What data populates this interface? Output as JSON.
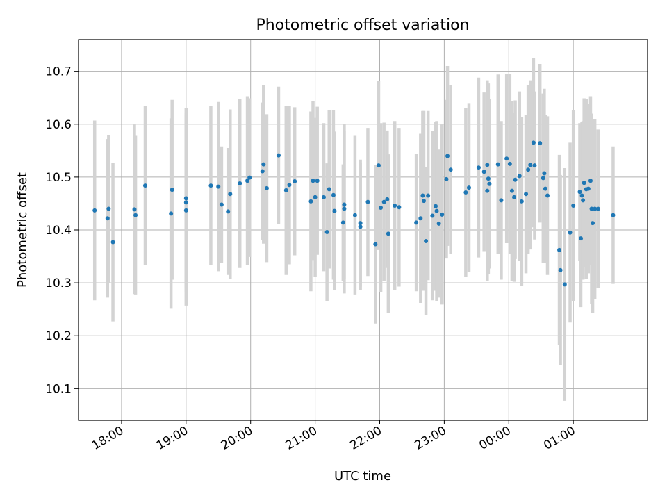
{
  "chart_data": {
    "type": "scatter",
    "title": "Photometric offset variation",
    "xlabel": "UTC time",
    "ylabel": "Photometric offset",
    "x_unit": "UTC time",
    "x_range": [
      "17:20",
      "02:09"
    ],
    "ylim": [
      10.04,
      10.76
    ],
    "x_ticks": [
      {
        "time": "18:00",
        "label": "18:00"
      },
      {
        "time": "19:00",
        "label": "19:00"
      },
      {
        "time": "20:00",
        "label": "20:00"
      },
      {
        "time": "21:00",
        "label": "21:00"
      },
      {
        "time": "22:00",
        "label": "22:00"
      },
      {
        "time": "23:00",
        "label": "23:00"
      },
      {
        "time": "00:00",
        "label": "00:00"
      },
      {
        "time": "01:00",
        "label": "01:00"
      }
    ],
    "y_ticks": [
      10.1,
      10.2,
      10.3,
      10.4,
      10.5,
      10.6,
      10.7
    ],
    "grid": true,
    "colors": {
      "marker": "#1f77b4",
      "errorbar": "#d3d3d3",
      "grid": "#b0b0b0"
    },
    "series": [
      {
        "points": [
          {
            "t": "17:35",
            "y": 10.437,
            "err": 0.17
          },
          {
            "t": "17:47",
            "y": 10.422,
            "err": 0.15
          },
          {
            "t": "17:48",
            "y": 10.44,
            "err": 0.14
          },
          {
            "t": "17:52",
            "y": 10.377,
            "err": 0.15
          },
          {
            "t": "18:12",
            "y": 10.439,
            "err": 0.16
          },
          {
            "t": "18:13",
            "y": 10.428,
            "err": 0.15
          },
          {
            "t": "18:22",
            "y": 10.484,
            "err": 0.15
          },
          {
            "t": "18:46",
            "y": 10.431,
            "err": 0.18
          },
          {
            "t": "18:47",
            "y": 10.476,
            "err": 0.17
          },
          {
            "t": "19:00",
            "y": 10.437,
            "err": 0.18
          },
          {
            "t": "19:00",
            "y": 10.452,
            "err": 0.17
          },
          {
            "t": "19:00",
            "y": 10.46,
            "err": 0.17
          },
          {
            "t": "19:23",
            "y": 10.484,
            "err": 0.15
          },
          {
            "t": "19:30",
            "y": 10.482,
            "err": 0.16
          },
          {
            "t": "19:33",
            "y": 10.448,
            "err": 0.11
          },
          {
            "t": "19:39",
            "y": 10.435,
            "err": 0.12
          },
          {
            "t": "19:41",
            "y": 10.468,
            "err": 0.16
          },
          {
            "t": "19:50",
            "y": 10.488,
            "err": 0.16
          },
          {
            "t": "19:57",
            "y": 10.493,
            "err": 0.16
          },
          {
            "t": "19:59",
            "y": 10.499,
            "err": 0.15
          },
          {
            "t": "20:11",
            "y": 10.511,
            "err": 0.13
          },
          {
            "t": "20:12",
            "y": 10.524,
            "err": 0.15
          },
          {
            "t": "20:15",
            "y": 10.479,
            "err": 0.14
          },
          {
            "t": "20:26",
            "y": 10.541,
            "err": 0.13
          },
          {
            "t": "20:33",
            "y": 10.475,
            "err": 0.16
          },
          {
            "t": "20:36",
            "y": 10.485,
            "err": 0.15
          },
          {
            "t": "20:41",
            "y": 10.492,
            "err": 0.14
          },
          {
            "t": "20:56",
            "y": 10.454,
            "err": 0.17
          },
          {
            "t": "20:58",
            "y": 10.493,
            "err": 0.15
          },
          {
            "t": "21:00",
            "y": 10.462,
            "err": 0.15
          },
          {
            "t": "21:02",
            "y": 10.493,
            "err": 0.14
          },
          {
            "t": "21:08",
            "y": 10.462,
            "err": 0.14
          },
          {
            "t": "21:11",
            "y": 10.396,
            "err": 0.13
          },
          {
            "t": "21:13",
            "y": 10.477,
            "err": 0.15
          },
          {
            "t": "21:17",
            "y": 10.466,
            "err": 0.16
          },
          {
            "t": "21:18",
            "y": 10.436,
            "err": 0.15
          },
          {
            "t": "21:26",
            "y": 10.414,
            "err": 0.11
          },
          {
            "t": "21:27",
            "y": 10.448,
            "err": 0.14
          },
          {
            "t": "21:27",
            "y": 10.44,
            "err": 0.16
          },
          {
            "t": "21:37",
            "y": 10.428,
            "err": 0.15
          },
          {
            "t": "21:42",
            "y": 10.413,
            "err": 0.12
          },
          {
            "t": "21:42",
            "y": 10.406,
            "err": 0.12
          },
          {
            "t": "21:49",
            "y": 10.453,
            "err": 0.14
          },
          {
            "t": "21:56",
            "y": 10.373,
            "err": 0.15
          },
          {
            "t": "21:59",
            "y": 10.522,
            "err": 0.16
          },
          {
            "t": "22:01",
            "y": 10.442,
            "err": 0.16
          },
          {
            "t": "22:04",
            "y": 10.453,
            "err": 0.15
          },
          {
            "t": "22:07",
            "y": 10.458,
            "err": 0.13
          },
          {
            "t": "22:08",
            "y": 10.393,
            "err": 0.15
          },
          {
            "t": "22:14",
            "y": 10.446,
            "err": 0.16
          },
          {
            "t": "22:18",
            "y": 10.443,
            "err": 0.15
          },
          {
            "t": "22:34",
            "y": 10.414,
            "err": 0.13
          },
          {
            "t": "22:38",
            "y": 10.422,
            "err": 0.16
          },
          {
            "t": "22:40",
            "y": 10.465,
            "err": 0.16
          },
          {
            "t": "22:41",
            "y": 10.455,
            "err": 0.17
          },
          {
            "t": "22:43",
            "y": 10.379,
            "err": 0.14
          },
          {
            "t": "22:45",
            "y": 10.465,
            "err": 0.16
          },
          {
            "t": "22:49",
            "y": 10.427,
            "err": 0.16
          },
          {
            "t": "22:52",
            "y": 10.445,
            "err": 0.16
          },
          {
            "t": "22:53",
            "y": 10.436,
            "err": 0.17
          },
          {
            "t": "22:55",
            "y": 10.412,
            "err": 0.14
          },
          {
            "t": "22:58",
            "y": 10.429,
            "err": 0.17
          },
          {
            "t": "23:02",
            "y": 10.496,
            "err": 0.15
          },
          {
            "t": "23:03",
            "y": 10.54,
            "err": 0.17
          },
          {
            "t": "23:06",
            "y": 10.514,
            "err": 0.16
          },
          {
            "t": "23:20",
            "y": 10.471,
            "err": 0.16
          },
          {
            "t": "23:23",
            "y": 10.48,
            "err": 0.16
          },
          {
            "t": "23:32",
            "y": 10.518,
            "err": 0.17
          },
          {
            "t": "23:37",
            "y": 10.51,
            "err": 0.15
          },
          {
            "t": "23:40",
            "y": 10.474,
            "err": 0.17
          },
          {
            "t": "23:40",
            "y": 10.523,
            "err": 0.16
          },
          {
            "t": "23:41",
            "y": 10.497,
            "err": 0.18
          },
          {
            "t": "23:42",
            "y": 10.487,
            "err": 0.16
          },
          {
            "t": "23:50",
            "y": 10.524,
            "err": 0.17
          },
          {
            "t": "23:53",
            "y": 10.456,
            "err": 0.15
          },
          {
            "t": "23:58",
            "y": 10.535,
            "err": 0.16
          },
          {
            "t": "00:01",
            "y": 10.525,
            "err": 0.17
          },
          {
            "t": "00:03",
            "y": 10.474,
            "err": 0.17
          },
          {
            "t": "00:05",
            "y": 10.462,
            "err": 0.16
          },
          {
            "t": "00:06",
            "y": 10.495,
            "err": 0.15
          },
          {
            "t": "00:10",
            "y": 10.502,
            "err": 0.16
          },
          {
            "t": "00:12",
            "y": 10.454,
            "err": 0.16
          },
          {
            "t": "00:16",
            "y": 10.468,
            "err": 0.15
          },
          {
            "t": "00:18",
            "y": 10.514,
            "err": 0.16
          },
          {
            "t": "00:20",
            "y": 10.523,
            "err": 0.16
          },
          {
            "t": "00:23",
            "y": 10.565,
            "err": 0.16
          },
          {
            "t": "00:24",
            "y": 10.522,
            "err": 0.14
          },
          {
            "t": "00:29",
            "y": 10.564,
            "err": 0.15
          },
          {
            "t": "00:32",
            "y": 10.498,
            "err": 0.16
          },
          {
            "t": "00:33",
            "y": 10.507,
            "err": 0.16
          },
          {
            "t": "00:34",
            "y": 10.478,
            "err": 0.14
          },
          {
            "t": "00:36",
            "y": 10.465,
            "err": 0.15
          },
          {
            "t": "00:47",
            "y": 10.362,
            "err": 0.18
          },
          {
            "t": "00:48",
            "y": 10.324,
            "err": 0.18
          },
          {
            "t": "00:52",
            "y": 10.297,
            "err": 0.22
          },
          {
            "t": "00:57",
            "y": 10.395,
            "err": 0.17
          },
          {
            "t": "01:00",
            "y": 10.446,
            "err": 0.18
          },
          {
            "t": "01:06",
            "y": 10.472,
            "err": 0.13
          },
          {
            "t": "01:07",
            "y": 10.384,
            "err": 0.13
          },
          {
            "t": "01:08",
            "y": 10.465,
            "err": 0.14
          },
          {
            "t": "01:09",
            "y": 10.456,
            "err": 0.15
          },
          {
            "t": "01:10",
            "y": 10.489,
            "err": 0.16
          },
          {
            "t": "01:12",
            "y": 10.477,
            "err": 0.17
          },
          {
            "t": "01:14",
            "y": 10.478,
            "err": 0.16
          },
          {
            "t": "01:16",
            "y": 10.493,
            "err": 0.16
          },
          {
            "t": "01:17",
            "y": 10.44,
            "err": 0.18
          },
          {
            "t": "01:18",
            "y": 10.413,
            "err": 0.17
          },
          {
            "t": "01:20",
            "y": 10.44,
            "err": 0.17
          },
          {
            "t": "01:23",
            "y": 10.44,
            "err": 0.15
          },
          {
            "t": "01:37",
            "y": 10.428,
            "err": 0.13
          }
        ]
      }
    ]
  }
}
